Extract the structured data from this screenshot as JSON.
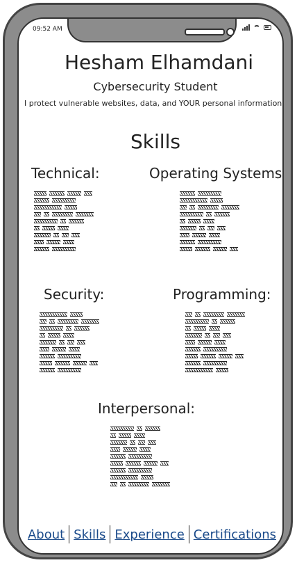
{
  "status": {
    "time": "09:52 AM"
  },
  "header": {
    "name": "Hesham Elhamdani",
    "subtitle": "Cybersecurity Student",
    "tagline": "I protect vulnerable websites, data, and YOUR personal information."
  },
  "skills": {
    "heading": "Skills",
    "technical": "Technical:",
    "os": "Operating Systems:",
    "security": "Security:",
    "programming": "Programming:",
    "interpersonal": "Interpersonal:"
  },
  "nav": {
    "about": "About",
    "skills": "Skills",
    "experience": "Experience",
    "certifications": "Certifications"
  },
  "colors": {
    "link": "#1a4a8a",
    "frame": "#8c8c8c"
  }
}
